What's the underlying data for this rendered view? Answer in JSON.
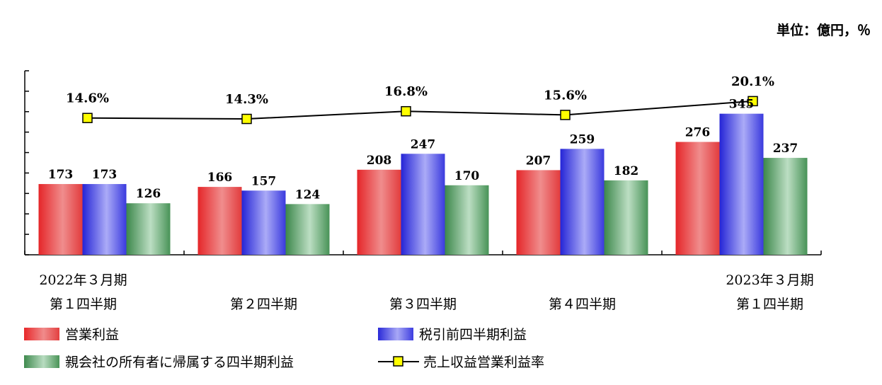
{
  "unit_label": "単位：億円，％",
  "chart_data": {
    "type": "bar",
    "categories": [
      [
        "2022年３月期",
        "第１四半期"
      ],
      [
        "第２四半期"
      ],
      [
        "第３四半期"
      ],
      [
        "第４四半期"
      ],
      [
        "2023年３月期",
        "第１四半期"
      ]
    ],
    "series": [
      {
        "name": "営業利益",
        "type": "bar",
        "color": "#e8282a",
        "values": [
          173,
          166,
          208,
          207,
          276
        ]
      },
      {
        "name": "税引前四半期利益",
        "type": "bar",
        "color": "#2a2ad8",
        "values": [
          173,
          157,
          247,
          259,
          345
        ]
      },
      {
        "name": "親会社の所有者に帰属する四半期利益",
        "type": "bar",
        "color": "#3f8a4e",
        "values": [
          126,
          124,
          170,
          182,
          237
        ]
      },
      {
        "name": "売上収益営業利益率",
        "type": "line",
        "color": "#000000",
        "marker_color": "#ffff00",
        "values": [
          14.6,
          14.3,
          16.8,
          15.6,
          20.1
        ],
        "labels": [
          "14.6%",
          "14.3%",
          "16.8%",
          "15.6%",
          "20.1%"
        ]
      }
    ],
    "bar_ylim": [
      0,
      450
    ],
    "line_ylim": [
      -30,
      30
    ],
    "grid": false
  }
}
